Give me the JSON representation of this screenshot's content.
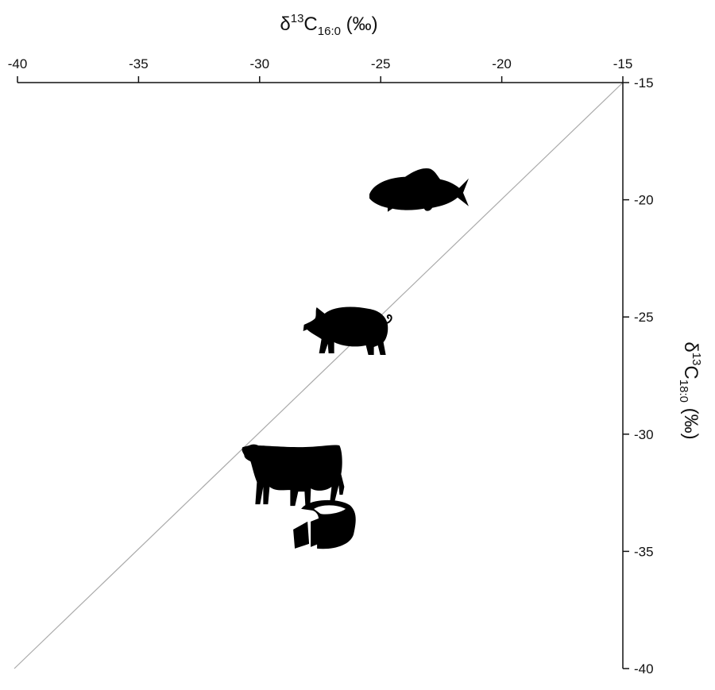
{
  "chart_data": {
    "type": "scatter",
    "title": "",
    "x_axis": {
      "label_main": "δ",
      "label_sup": "13",
      "label_c": "C",
      "label_sub": "16:0",
      "label_unit": " (‰)",
      "position": "top",
      "range": [
        -40,
        -15
      ],
      "ticks": [
        -40,
        -35,
        -30,
        -25,
        -20,
        -15
      ],
      "tick_labels": [
        "-40",
        "-35",
        "-30",
        "-25",
        "-20",
        "-15"
      ]
    },
    "y_axis": {
      "label_main": "δ",
      "label_sup": "13",
      "label_c": "C",
      "label_sub": "18:0",
      "label_unit": " (‰)",
      "position": "right",
      "range": [
        -40,
        -15
      ],
      "ticks": [
        -15,
        -20,
        -25,
        -30,
        -35,
        -40
      ],
      "tick_labels": [
        "-15",
        "-20",
        "-25",
        "-30",
        "-35",
        "-40"
      ]
    },
    "reference_line": {
      "type": "identity",
      "from": [
        -40,
        -40
      ],
      "to": [
        -15,
        -15
      ],
      "color": "#aaaaaa"
    },
    "grid": false,
    "legend": "none",
    "points": [
      {
        "icon": "fish-icon",
        "x": -23.4,
        "y": -19.8
      },
      {
        "icon": "pig-icon",
        "x": -26.2,
        "y": -25.4
      },
      {
        "icon": "cow-icon",
        "x": -28.8,
        "y": -31.5
      },
      {
        "icon": "cheese-icon",
        "x": -27.3,
        "y": -34.0
      }
    ]
  }
}
